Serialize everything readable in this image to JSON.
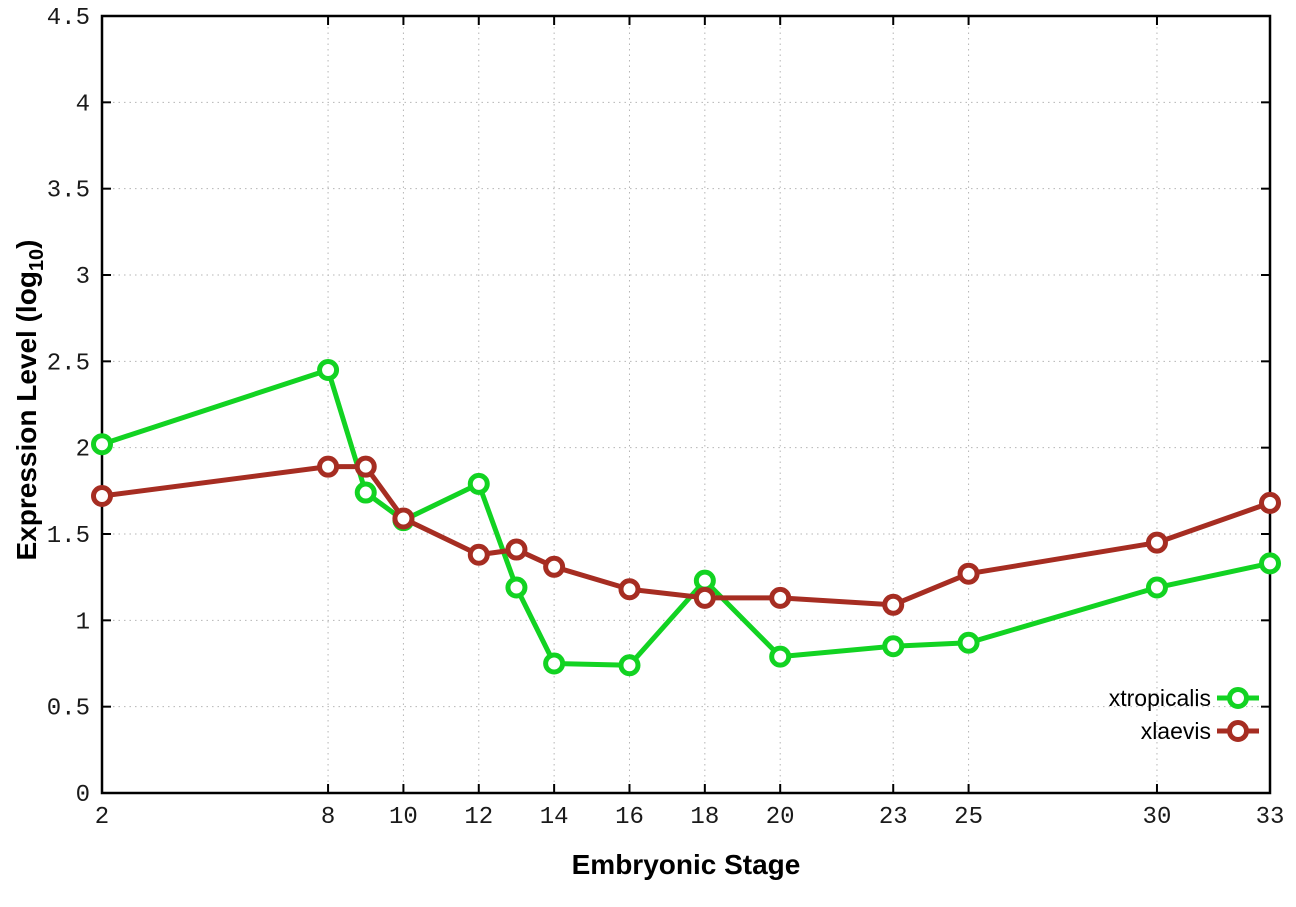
{
  "chart_data": {
    "type": "line",
    "title": "",
    "xlabel": "Embryonic Stage",
    "ylabel": "Expression Level (log10)",
    "ylabel_parts": {
      "prefix": "Expression Level (log",
      "sub": "10",
      "suffix": ")"
    },
    "x": [
      2,
      8,
      9,
      10,
      12,
      13,
      14,
      16,
      18,
      20,
      23,
      25,
      30,
      33
    ],
    "series": [
      {
        "name": "xtropicalis",
        "color": "#12d322",
        "values": [
          2.02,
          2.45,
          1.74,
          1.58,
          1.79,
          1.19,
          0.75,
          0.74,
          1.23,
          0.79,
          0.85,
          0.87,
          1.19,
          1.33
        ]
      },
      {
        "name": "xlaevis",
        "color": "#a62d22",
        "values": [
          1.72,
          1.89,
          1.89,
          1.59,
          1.38,
          1.41,
          1.31,
          1.18,
          1.13,
          1.13,
          1.09,
          1.27,
          1.45,
          1.68
        ]
      }
    ],
    "xlim": [
      2,
      33
    ],
    "ylim": [
      0,
      4.5
    ],
    "xticks": [
      2,
      8,
      10,
      12,
      14,
      16,
      18,
      20,
      23,
      25,
      30,
      33
    ],
    "yticks": [
      0,
      0.5,
      1,
      1.5,
      2,
      2.5,
      3,
      3.5,
      4,
      4.5
    ],
    "grid": true,
    "grid_color": "#b5b5b5",
    "axis_color": "#000000",
    "marker": "open-circle",
    "legend_position": "bottom-right",
    "legend_labels": [
      "xtropicalis",
      "xlaevis"
    ]
  }
}
